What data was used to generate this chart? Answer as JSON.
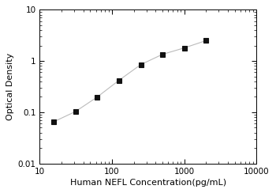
{
  "x": [
    15.6,
    31.2,
    62.5,
    125,
    250,
    500,
    1000,
    2000
  ],
  "y": [
    0.065,
    0.103,
    0.198,
    0.42,
    0.85,
    1.35,
    1.8,
    2.5
  ],
  "line_color": "#bbbbbb",
  "marker_color": "#111111",
  "marker": "s",
  "marker_size": 4,
  "line_style": "-",
  "line_width": 0.8,
  "xlabel": "Human NEFL Concentration(pg/mL)",
  "ylabel": "Optical Density",
  "xlim": [
    10,
    10000
  ],
  "ylim": [
    0.01,
    10
  ],
  "xticks": [
    10,
    100,
    1000,
    10000
  ],
  "yticks": [
    0.01,
    0.1,
    1,
    10
  ],
  "xlabel_fontsize": 8,
  "ylabel_fontsize": 8,
  "tick_fontsize": 7.5,
  "background_color": "#ffffff"
}
